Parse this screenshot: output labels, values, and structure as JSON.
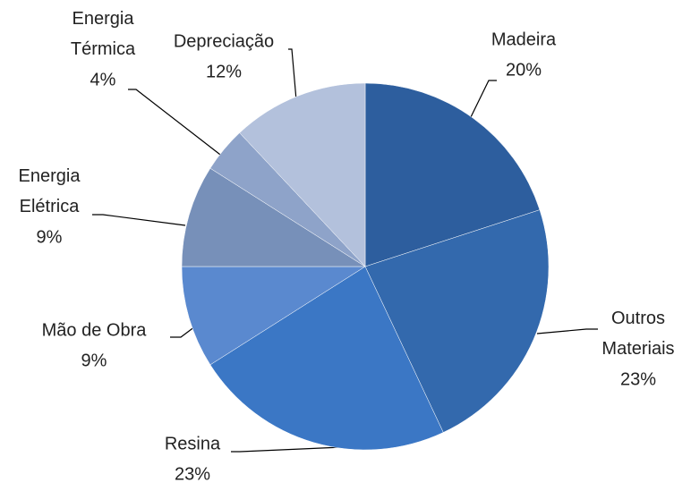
{
  "chart_data": {
    "type": "pie",
    "categories": [
      "Madeira",
      "Outros Materiais",
      "Resina",
      "Mão de Obra",
      "Energia Elétrica",
      "Energia Térmica",
      "Depreciação"
    ],
    "values": [
      20,
      23,
      23,
      9,
      9,
      4,
      12
    ],
    "value_labels": [
      "20%",
      "23%",
      "23%",
      "9%",
      "9%",
      "4%",
      "12%"
    ],
    "colors": [
      "#2d5e9e",
      "#3369ad",
      "#3b77c5",
      "#5a89cf",
      "#7790b9",
      "#8ea3c9",
      "#b3c1dc"
    ]
  }
}
